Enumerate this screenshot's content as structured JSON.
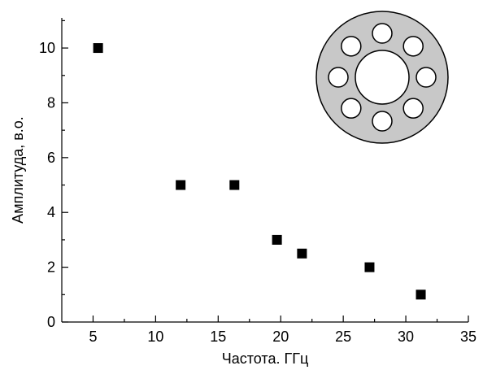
{
  "chart_data": {
    "type": "scatter",
    "xlabel": "Частота. ГГц",
    "ylabel": "Амплитуда, в.о.",
    "xlim": [
      2.5,
      35
    ],
    "ylim": [
      0,
      11.1
    ],
    "xticks": [
      5,
      10,
      15,
      20,
      25,
      30,
      35
    ],
    "yticks": [
      0,
      2,
      4,
      6,
      8,
      10
    ],
    "x_tick_labels": [
      "5",
      "10",
      "15",
      "20",
      "25",
      "30",
      "35"
    ],
    "y_tick_labels": [
      "0",
      "2",
      "4",
      "6",
      "8",
      "10"
    ],
    "grid": false,
    "marker": "square",
    "marker_color": "#000000",
    "points": [
      {
        "x": 5.4,
        "y": 10
      },
      {
        "x": 12.0,
        "y": 5
      },
      {
        "x": 16.3,
        "y": 5
      },
      {
        "x": 19.7,
        "y": 3
      },
      {
        "x": 21.7,
        "y": 2.5
      },
      {
        "x": 27.1,
        "y": 2
      },
      {
        "x": 31.2,
        "y": 1
      }
    ],
    "inset": {
      "description_icon": "ring-with-holes-icon",
      "ring_color": "#c8c8c8",
      "stroke_color": "#000000",
      "hole_color": "#ffffff",
      "small_hole_count": 8
    }
  }
}
